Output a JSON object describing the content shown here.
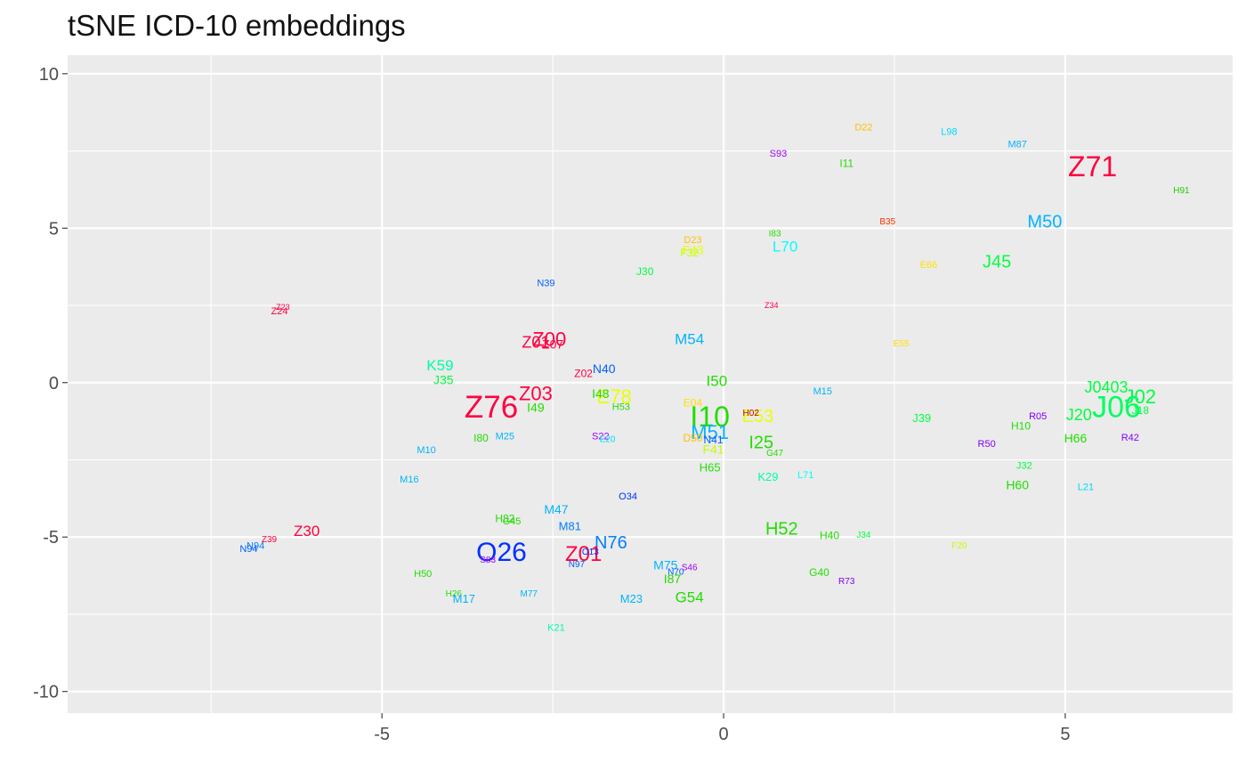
{
  "chart_data": {
    "type": "scatter",
    "marker": "text-label",
    "title": "tSNE ICD-10 embeddings",
    "xlabel": "",
    "ylabel": "",
    "xlim": [
      -9.6,
      7.45
    ],
    "ylim": [
      -10.7,
      10.6
    ],
    "x_ticks": [
      -5,
      0,
      5
    ],
    "x_tick_labels": [
      "-5",
      "0",
      "5"
    ],
    "y_ticks": [
      -10,
      -5,
      0,
      5,
      10
    ],
    "y_tick_labels": [
      "-10",
      "-5",
      "0",
      "5",
      "10"
    ],
    "grid": true,
    "panel_background": "#ebebeb",
    "grid_color": "#ffffff",
    "points": [
      {
        "label": "Z71",
        "x": 5.4,
        "y": 7.0,
        "size": 32,
        "color": "#ff0040"
      },
      {
        "label": "H91",
        "x": 6.7,
        "y": 6.2,
        "size": 10,
        "color": "#22cc00"
      },
      {
        "label": "M87",
        "x": 4.3,
        "y": 7.7,
        "size": 11,
        "color": "#00b4ff"
      },
      {
        "label": "L98",
        "x": 3.3,
        "y": 8.1,
        "size": 11,
        "color": "#00d8ff"
      },
      {
        "label": "D22",
        "x": 2.05,
        "y": 8.25,
        "size": 11,
        "color": "#ffc000"
      },
      {
        "label": "I11",
        "x": 1.8,
        "y": 7.1,
        "size": 12,
        "color": "#22dd00"
      },
      {
        "label": "S93",
        "x": 0.8,
        "y": 7.4,
        "size": 11,
        "color": "#a000ff"
      },
      {
        "label": "B35",
        "x": 2.4,
        "y": 5.2,
        "size": 10,
        "color": "#ff3000"
      },
      {
        "label": "I83",
        "x": 0.75,
        "y": 4.8,
        "size": 10,
        "color": "#22dd00"
      },
      {
        "label": "L70",
        "x": 0.9,
        "y": 4.4,
        "size": 17,
        "color": "#00ffff"
      },
      {
        "label": "M50",
        "x": 4.7,
        "y": 5.2,
        "size": 20,
        "color": "#00b4ff"
      },
      {
        "label": "J45",
        "x": 4.0,
        "y": 3.9,
        "size": 20,
        "color": "#00ff40"
      },
      {
        "label": "D23",
        "x": -0.45,
        "y": 4.6,
        "size": 11,
        "color": "#ffc000"
      },
      {
        "label": "F43",
        "x": -0.45,
        "y": 4.3,
        "size": 14,
        "color": "#e8ff00"
      },
      {
        "label": "F32",
        "x": -0.5,
        "y": 4.2,
        "size": 12,
        "color": "#c0ff00"
      },
      {
        "label": "E66",
        "x": 3.0,
        "y": 3.8,
        "size": 11,
        "color": "#ffe000"
      },
      {
        "label": "J30",
        "x": -1.15,
        "y": 3.6,
        "size": 12,
        "color": "#00ff40"
      },
      {
        "label": "N39",
        "x": -2.6,
        "y": 3.2,
        "size": 11,
        "color": "#0060ff"
      },
      {
        "label": "Z34",
        "x": 0.7,
        "y": 2.5,
        "size": 9,
        "color": "#ff0040"
      },
      {
        "label": "Z23",
        "x": -6.45,
        "y": 2.45,
        "size": 9,
        "color": "#ff0040"
      },
      {
        "label": "Z24",
        "x": -6.5,
        "y": 2.3,
        "size": 11,
        "color": "#ff0040"
      },
      {
        "label": "Z00",
        "x": -2.55,
        "y": 1.4,
        "size": 22,
        "color": "#ff0040"
      },
      {
        "label": "Z01",
        "x": -2.75,
        "y": 1.3,
        "size": 18,
        "color": "#ff0040"
      },
      {
        "label": "Z07",
        "x": -2.5,
        "y": 1.25,
        "size": 14,
        "color": "#ff0040"
      },
      {
        "label": "M54",
        "x": -0.5,
        "y": 1.4,
        "size": 17,
        "color": "#00b4ff"
      },
      {
        "label": "E55",
        "x": 2.6,
        "y": 1.25,
        "size": 10,
        "color": "#ffe000"
      },
      {
        "label": "K59",
        "x": -4.15,
        "y": 0.55,
        "size": 17,
        "color": "#00ffa0"
      },
      {
        "label": "J35",
        "x": -4.1,
        "y": 0.1,
        "size": 14,
        "color": "#00ff40"
      },
      {
        "label": "N40",
        "x": -1.75,
        "y": 0.45,
        "size": 14,
        "color": "#0060ff"
      },
      {
        "label": "Z02",
        "x": -2.05,
        "y": 0.3,
        "size": 12,
        "color": "#ff0040"
      },
      {
        "label": "I50",
        "x": -0.1,
        "y": 0.05,
        "size": 17,
        "color": "#22dd00"
      },
      {
        "label": "Z76",
        "x": -3.4,
        "y": -0.8,
        "size": 35,
        "color": "#ff0040"
      },
      {
        "label": "Z03",
        "x": -2.75,
        "y": -0.35,
        "size": 22,
        "color": "#ff0040"
      },
      {
        "label": "I49",
        "x": -2.75,
        "y": -0.8,
        "size": 14,
        "color": "#22dd00"
      },
      {
        "label": "E78",
        "x": -1.6,
        "y": -0.45,
        "size": 22,
        "color": "#e8ff00"
      },
      {
        "label": "I48",
        "x": -1.8,
        "y": -0.35,
        "size": 14,
        "color": "#22dd00"
      },
      {
        "label": "H53",
        "x": -1.5,
        "y": -0.8,
        "size": 11,
        "color": "#22dd00"
      },
      {
        "label": "M15",
        "x": 1.45,
        "y": -0.3,
        "size": 11,
        "color": "#00b4ff"
      },
      {
        "label": "E04",
        "x": -0.45,
        "y": -0.65,
        "size": 12,
        "color": "#ffe000"
      },
      {
        "label": "I10",
        "x": -0.2,
        "y": -1.1,
        "size": 32,
        "color": "#22dd00"
      },
      {
        "label": "E53",
        "x": 0.5,
        "y": -1.1,
        "size": 20,
        "color": "#e8ff00"
      },
      {
        "label": "H02",
        "x": 0.4,
        "y": -1.0,
        "size": 10,
        "color": "#c00000"
      },
      {
        "label": "J39",
        "x": 2.9,
        "y": -1.15,
        "size": 13,
        "color": "#00ff40"
      },
      {
        "label": "R05",
        "x": 4.6,
        "y": -1.1,
        "size": 11,
        "color": "#8000ff"
      },
      {
        "label": "H10",
        "x": 4.35,
        "y": -1.4,
        "size": 12,
        "color": "#22dd00"
      },
      {
        "label": "J0403",
        "x": 5.6,
        "y": -0.15,
        "size": 18,
        "color": "#00ff40"
      },
      {
        "label": "J02",
        "x": 6.1,
        "y": -0.45,
        "size": 22,
        "color": "#00ff40"
      },
      {
        "label": "J06",
        "x": 5.75,
        "y": -0.8,
        "size": 34,
        "color": "#00ff60"
      },
      {
        "label": "J20",
        "x": 5.2,
        "y": -1.05,
        "size": 18,
        "color": "#00ff40"
      },
      {
        "label": "J18",
        "x": 6.1,
        "y": -0.9,
        "size": 12,
        "color": "#00ff40"
      },
      {
        "label": "H66",
        "x": 5.15,
        "y": -1.8,
        "size": 14,
        "color": "#22dd00"
      },
      {
        "label": "R42",
        "x": 5.95,
        "y": -1.8,
        "size": 11,
        "color": "#8000ff"
      },
      {
        "label": "R50",
        "x": 3.85,
        "y": -2.0,
        "size": 11,
        "color": "#8000ff"
      },
      {
        "label": "M25",
        "x": -3.2,
        "y": -1.75,
        "size": 11,
        "color": "#00b4ff"
      },
      {
        "label": "I80",
        "x": -3.55,
        "y": -1.8,
        "size": 12,
        "color": "#22dd00"
      },
      {
        "label": "S22",
        "x": -1.8,
        "y": -1.75,
        "size": 11,
        "color": "#a000ff"
      },
      {
        "label": "E20",
        "x": -1.7,
        "y": -1.85,
        "size": 10,
        "color": "#00e0ff"
      },
      {
        "label": "M51",
        "x": -0.2,
        "y": -1.6,
        "size": 22,
        "color": "#00b4ff"
      },
      {
        "label": "D50",
        "x": -0.45,
        "y": -1.8,
        "size": 12,
        "color": "#ffc000"
      },
      {
        "label": "N41",
        "x": -0.15,
        "y": -1.85,
        "size": 12,
        "color": "#0060ff"
      },
      {
        "label": "F41",
        "x": -0.15,
        "y": -2.15,
        "size": 14,
        "color": "#c0ff00"
      },
      {
        "label": "I25",
        "x": 0.55,
        "y": -1.95,
        "size": 20,
        "color": "#22dd00"
      },
      {
        "label": "G47",
        "x": 0.75,
        "y": -2.3,
        "size": 10,
        "color": "#22dd00"
      },
      {
        "label": "M10",
        "x": -4.35,
        "y": -2.2,
        "size": 11,
        "color": "#00b4ff"
      },
      {
        "label": "M16",
        "x": -4.6,
        "y": -3.15,
        "size": 11,
        "color": "#00b4ff"
      },
      {
        "label": "H65",
        "x": -0.2,
        "y": -2.75,
        "size": 13,
        "color": "#22dd00"
      },
      {
        "label": "K29",
        "x": 0.65,
        "y": -3.05,
        "size": 13,
        "color": "#00ffa0"
      },
      {
        "label": "L71",
        "x": 1.2,
        "y": -3.0,
        "size": 11,
        "color": "#00ffff"
      },
      {
        "label": "J32",
        "x": 4.4,
        "y": -2.7,
        "size": 11,
        "color": "#00ff40"
      },
      {
        "label": "H60",
        "x": 4.3,
        "y": -3.3,
        "size": 14,
        "color": "#22dd00"
      },
      {
        "label": "L21",
        "x": 5.3,
        "y": -3.4,
        "size": 11,
        "color": "#00d8ff"
      },
      {
        "label": "O34",
        "x": -1.4,
        "y": -3.7,
        "size": 11,
        "color": "#0030ff"
      },
      {
        "label": "M47",
        "x": -2.45,
        "y": -4.1,
        "size": 14,
        "color": "#00b4ff"
      },
      {
        "label": "H82",
        "x": -3.2,
        "y": -4.4,
        "size": 12,
        "color": "#22dd00"
      },
      {
        "label": "G45",
        "x": -3.1,
        "y": -4.5,
        "size": 11,
        "color": "#22dd00"
      },
      {
        "label": "M81",
        "x": -2.25,
        "y": -4.65,
        "size": 13,
        "color": "#0080ff"
      },
      {
        "label": "H52",
        "x": 0.85,
        "y": -4.75,
        "size": 20,
        "color": "#22dd00"
      },
      {
        "label": "H40",
        "x": 1.55,
        "y": -4.95,
        "size": 12,
        "color": "#22dd00"
      },
      {
        "label": "J34",
        "x": 2.05,
        "y": -4.95,
        "size": 10,
        "color": "#00ff40"
      },
      {
        "label": "F20",
        "x": 3.45,
        "y": -5.3,
        "size": 10,
        "color": "#c0ff00"
      },
      {
        "label": "Z30",
        "x": -6.1,
        "y": -4.8,
        "size": 17,
        "color": "#ff0040"
      },
      {
        "label": "Z39",
        "x": -6.65,
        "y": -5.1,
        "size": 10,
        "color": "#ff0040"
      },
      {
        "label": "N94",
        "x": -6.85,
        "y": -5.3,
        "size": 11,
        "color": "#0080ff"
      },
      {
        "label": "N94",
        "x": -6.95,
        "y": -5.4,
        "size": 11,
        "color": "#0060ff"
      },
      {
        "label": "O26",
        "x": -3.25,
        "y": -5.5,
        "size": 30,
        "color": "#0030ff"
      },
      {
        "label": "S83",
        "x": -3.45,
        "y": -5.75,
        "size": 10,
        "color": "#a000ff"
      },
      {
        "label": "N76",
        "x": -1.65,
        "y": -5.2,
        "size": 20,
        "color": "#0080ff"
      },
      {
        "label": "Z01",
        "x": -2.05,
        "y": -5.55,
        "size": 24,
        "color": "#ff0040"
      },
      {
        "label": "O13",
        "x": -1.95,
        "y": -5.5,
        "size": 10,
        "color": "#0030ff"
      },
      {
        "label": "N97",
        "x": -2.15,
        "y": -5.9,
        "size": 10,
        "color": "#0060ff"
      },
      {
        "label": "M75",
        "x": -0.85,
        "y": -5.9,
        "size": 14,
        "color": "#00b4ff"
      },
      {
        "label": "S46",
        "x": -0.5,
        "y": -6.0,
        "size": 10,
        "color": "#a000ff"
      },
      {
        "label": "N70",
        "x": -0.7,
        "y": -6.15,
        "size": 10,
        "color": "#0060ff"
      },
      {
        "label": "I87",
        "x": -0.75,
        "y": -6.35,
        "size": 14,
        "color": "#22dd00"
      },
      {
        "label": "G40",
        "x": 1.4,
        "y": -6.15,
        "size": 12,
        "color": "#22dd00"
      },
      {
        "label": "R73",
        "x": 1.8,
        "y": -6.45,
        "size": 10,
        "color": "#8000ff"
      },
      {
        "label": "H50",
        "x": -4.4,
        "y": -6.2,
        "size": 11,
        "color": "#22dd00"
      },
      {
        "label": "H26",
        "x": -3.95,
        "y": -6.85,
        "size": 10,
        "color": "#22dd00"
      },
      {
        "label": "M17",
        "x": -3.8,
        "y": -7.0,
        "size": 13,
        "color": "#00b4ff"
      },
      {
        "label": "M77",
        "x": -2.85,
        "y": -6.85,
        "size": 10,
        "color": "#00b4ff"
      },
      {
        "label": "M23",
        "x": -1.35,
        "y": -7.0,
        "size": 13,
        "color": "#00b4ff"
      },
      {
        "label": "G54",
        "x": -0.5,
        "y": -6.95,
        "size": 17,
        "color": "#22dd00"
      },
      {
        "label": "K21",
        "x": -2.45,
        "y": -7.95,
        "size": 11,
        "color": "#00ffa0"
      }
    ]
  }
}
